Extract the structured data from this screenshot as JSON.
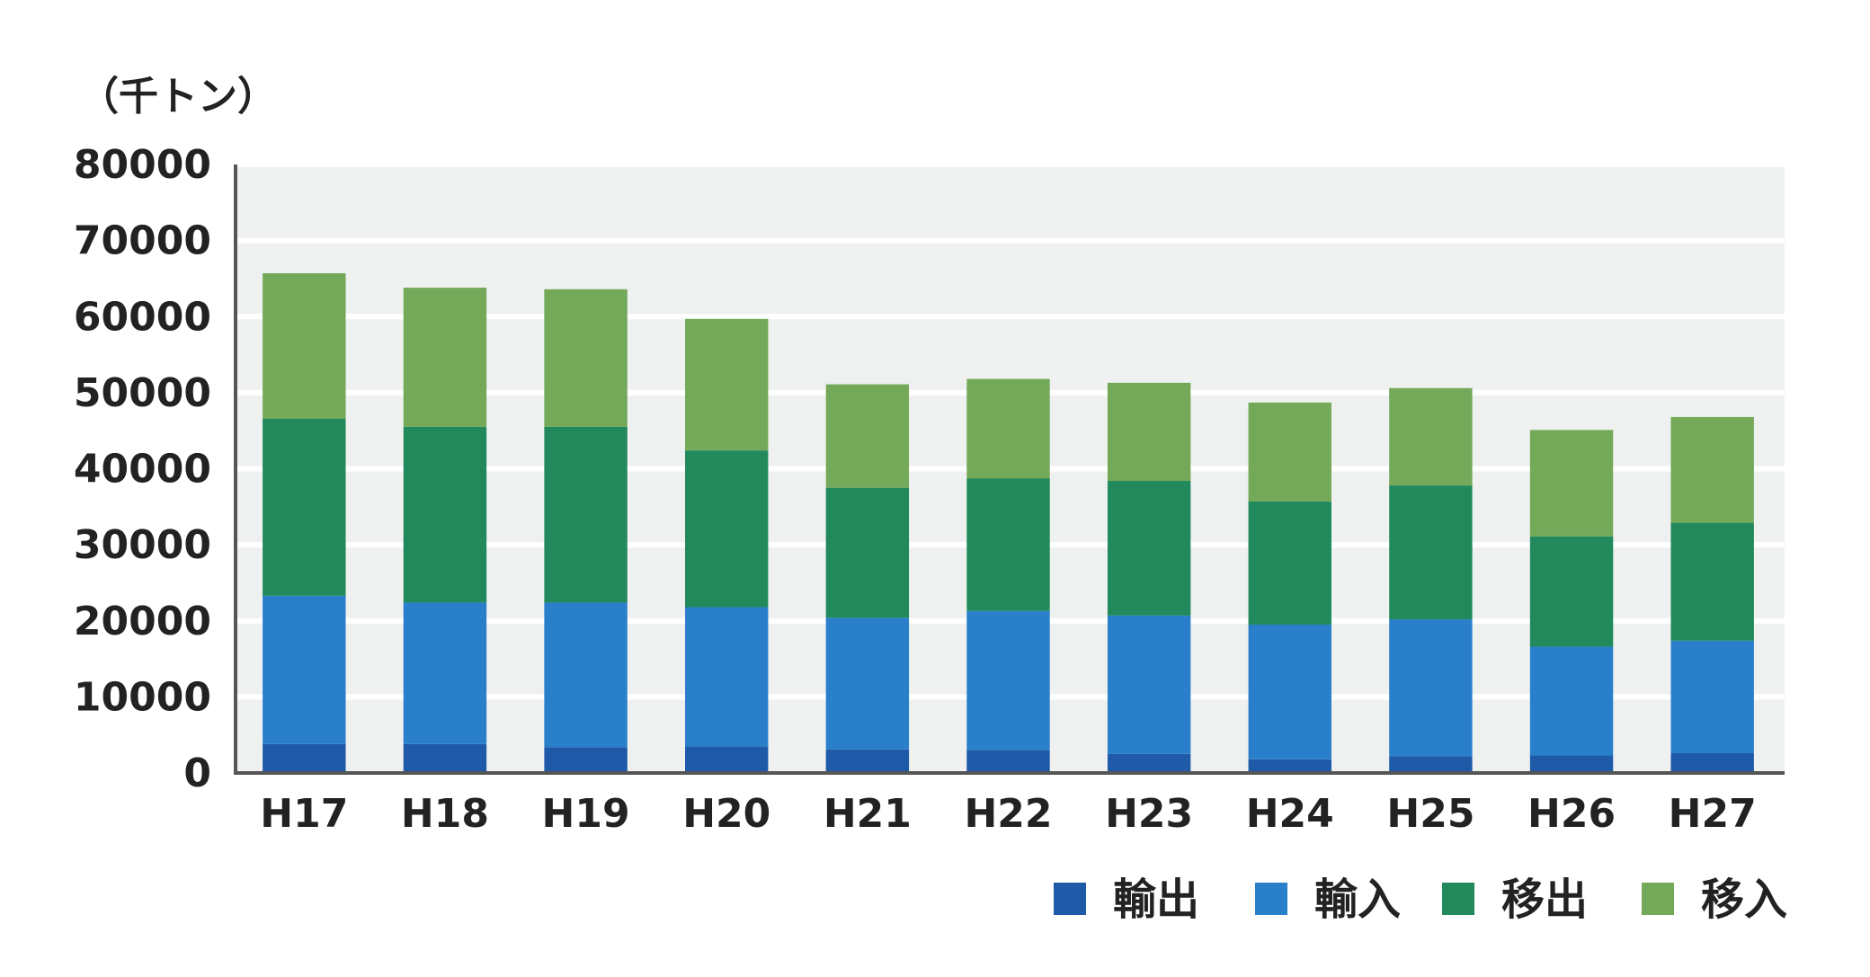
{
  "chart_data": {
    "type": "bar",
    "stacked": true,
    "title": "",
    "unit_label": "（千トン）",
    "xlabel": "",
    "ylabel": "",
    "ylim": [
      0,
      80000
    ],
    "yticks": [
      "80000",
      "70000",
      "60000",
      "50000",
      "40000",
      "30000",
      "20000",
      "10000",
      "0"
    ],
    "ytick_values": [
      80000,
      70000,
      60000,
      50000,
      40000,
      30000,
      20000,
      10000,
      0
    ],
    "grid": true,
    "legend_position": "bottom-right",
    "categories": [
      "H17",
      "H18",
      "H19",
      "H20",
      "H21",
      "H22",
      "H23",
      "H24",
      "H25",
      "H26",
      "H27"
    ],
    "series": [
      {
        "name": "輸出",
        "color": "#1e5aa8",
        "values": [
          3800,
          3800,
          3400,
          3500,
          3100,
          3000,
          2500,
          1800,
          2200,
          2300,
          2600
        ]
      },
      {
        "name": "輸入",
        "color": "#2a7fcb",
        "values": [
          19500,
          18600,
          19000,
          18300,
          17300,
          18300,
          18200,
          17700,
          18000,
          14300,
          14800
        ]
      },
      {
        "name": "移出",
        "color": "#21895b",
        "values": [
          23300,
          23100,
          23100,
          20600,
          17100,
          17400,
          17700,
          16200,
          17600,
          14500,
          15500
        ]
      },
      {
        "name": "移入",
        "color": "#74a95a",
        "values": [
          19100,
          18300,
          18100,
          17300,
          13600,
          13100,
          12900,
          13000,
          12800,
          14000,
          13900
        ]
      }
    ],
    "colors": {
      "plot_background": "#eff1f0",
      "grid": "#ffffff",
      "axis": "#555555"
    }
  }
}
